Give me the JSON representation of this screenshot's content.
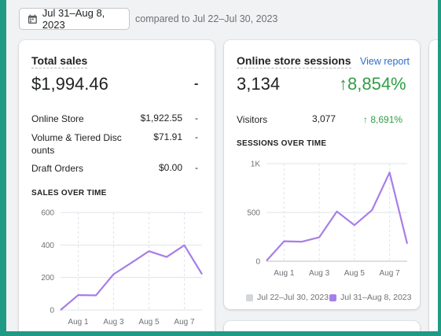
{
  "header": {
    "date_range": "Jul 31–Aug 8, 2023",
    "compare_text": "compared to Jul 22–Jul 30, 2023"
  },
  "total_sales": {
    "title": "Total sales",
    "value": "$1,994.46",
    "change": "-",
    "rows": [
      {
        "label_line1": "Online Store",
        "label_line2": "",
        "value": "$1,922.55",
        "change": "-"
      },
      {
        "label_line1": "Volume & Tiered Disc",
        "label_line2": "ounts",
        "value": "$71.91",
        "change": "-"
      },
      {
        "label_line1": "Draft Orders",
        "label_line2": "",
        "value": "$0.00",
        "change": "-"
      }
    ],
    "chart_title": "SALES OVER TIME"
  },
  "sessions": {
    "title": "Online store sessions",
    "view_report": "View report",
    "value": "3,134",
    "change": "8,854%",
    "visitors_label": "Visitors",
    "visitors_value": "3,077",
    "visitors_change": "8,691%",
    "chart_title": "SESSIONS OVER TIME",
    "legend_prev": "Jul 22–Jul 30, 2023",
    "legend_curr": "Jul 31–Aug 8, 2023"
  },
  "colors": {
    "series": "#a77ee8",
    "grid": "#dfe3e8",
    "prev_swatch": "#d3d6da",
    "up_green": "#2f9e44"
  },
  "icons": {
    "calendar": "calendar-icon",
    "arrow_up": "arrow-up-icon"
  },
  "chart_data": [
    {
      "type": "line",
      "title": "SALES OVER TIME",
      "x_ticks": [
        "Aug 1",
        "Aug 3",
        "Aug 5",
        "Aug 7"
      ],
      "x": [
        "Jul 31",
        "Aug 1",
        "Aug 2",
        "Aug 3",
        "Aug 4",
        "Aug 5",
        "Aug 6",
        "Aug 7",
        "Aug 8"
      ],
      "y_ticks": [
        0,
        200,
        400,
        600
      ],
      "ylim": [
        0,
        600
      ],
      "grid": true,
      "series": [
        {
          "values": [
            0,
            92,
            90,
            220,
            290,
            362,
            326,
            398,
            220
          ]
        }
      ]
    },
    {
      "type": "line",
      "title": "SESSIONS OVER TIME",
      "x_ticks": [
        "Aug 1",
        "Aug 3",
        "Aug 5",
        "Aug 7"
      ],
      "x": [
        "Jul 31",
        "Aug 1",
        "Aug 2",
        "Aug 3",
        "Aug 4",
        "Aug 5",
        "Aug 6",
        "Aug 7",
        "Aug 8"
      ],
      "y_ticks": [
        "0",
        "500",
        "1K"
      ],
      "ylim": [
        0,
        1000
      ],
      "grid": true,
      "legend": "bottom",
      "series": [
        {
          "name": "Jul 22–Jul 30, 2023",
          "values": [
            0,
            0,
            0,
            0,
            0,
            0,
            0,
            0,
            0
          ]
        },
        {
          "name": "Jul 31–Aug 8, 2023",
          "values": [
            5,
            205,
            200,
            245,
            510,
            370,
            525,
            910,
            180
          ]
        }
      ]
    }
  ]
}
